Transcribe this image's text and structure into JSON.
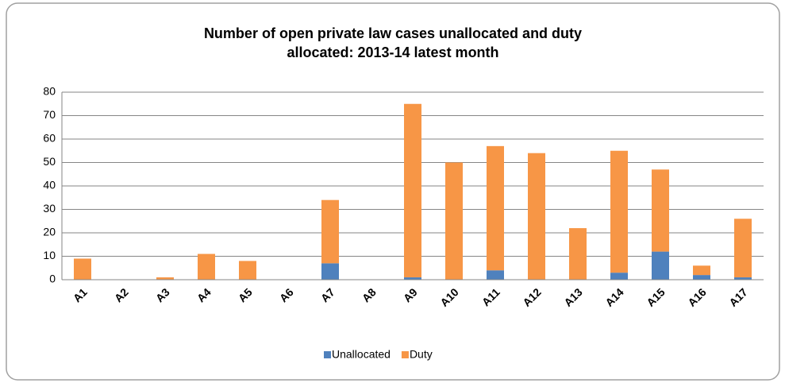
{
  "chart_data": {
    "type": "stacked_bar",
    "title": [
      "Number of open private law cases unallocated and duty",
      "allocated: 2013-14 latest month"
    ],
    "categories": [
      "A1",
      "A2",
      "A3",
      "A4",
      "A5",
      "A6",
      "A7",
      "A8",
      "A9",
      "A10",
      "A11",
      "A12",
      "A13",
      "A14",
      "A15",
      "A16",
      "A17"
    ],
    "series": [
      {
        "name": "Unallocated",
        "color": "#4f81bd",
        "values": [
          0,
          0,
          0,
          0,
          0,
          0,
          7,
          0,
          1,
          0,
          4,
          0,
          0,
          3,
          12,
          2,
          1
        ]
      },
      {
        "name": "Duty",
        "color": "#f79646",
        "values": [
          9,
          0,
          1,
          11,
          8,
          0,
          27,
          0,
          74,
          50,
          53,
          54,
          22,
          52,
          35,
          4,
          25
        ]
      }
    ],
    "ylim": [
      0,
      80
    ],
    "yticks": [
      0,
      10,
      20,
      30,
      40,
      50,
      60,
      70,
      80
    ],
    "grid": true,
    "legend": "bottom"
  }
}
